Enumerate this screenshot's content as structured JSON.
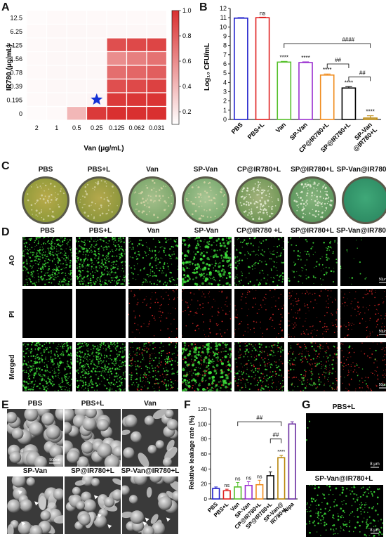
{
  "panels": {
    "A": "A",
    "B": "B",
    "C": "C",
    "D": "D",
    "E": "E",
    "F": "F",
    "G": "G"
  },
  "chart_data": [
    {
      "panel": "A",
      "type": "heatmap",
      "xlabel": "Van (μg/mL)",
      "ylabel": "IR780 (μg/mL)",
      "x_categories": [
        "2",
        "1",
        "0.5",
        "0.25",
        "0.125",
        "0.062",
        "0.031"
      ],
      "y_categories": [
        "12.5",
        "6.25",
        "3.125",
        "1.56",
        "0.78",
        "0.39",
        "0.195",
        "0"
      ],
      "values": [
        [
          0.02,
          0.03,
          0.03,
          0.03,
          0.03,
          0.03,
          0.03
        ],
        [
          0.03,
          0.04,
          0.04,
          0.04,
          0.04,
          0.04,
          0.04
        ],
        [
          0.03,
          0.04,
          0.04,
          0.04,
          0.85,
          0.88,
          0.9
        ],
        [
          0.03,
          0.04,
          0.04,
          0.04,
          0.55,
          0.62,
          0.68
        ],
        [
          0.03,
          0.04,
          0.04,
          0.04,
          0.7,
          0.74,
          0.78
        ],
        [
          0.03,
          0.04,
          0.04,
          0.04,
          0.85,
          0.88,
          0.92
        ],
        [
          0.03,
          0.04,
          0.04,
          0.05,
          0.95,
          0.97,
          0.98
        ],
        [
          0.02,
          0.03,
          0.35,
          0.95,
          1.0,
          1.0,
          1.0
        ]
      ],
      "colorbar_ticks": [
        "1.0",
        "0.8",
        "0.6",
        "0.4",
        "0.2"
      ],
      "colorbar_range": [
        0.1,
        1.0
      ],
      "marker": {
        "shape": "star",
        "x": "0.25",
        "y": "0.195",
        "color": "#1432d6"
      }
    },
    {
      "panel": "B",
      "type": "bar",
      "ylabel": "Log₁₀ CFU/mL",
      "ylim": [
        0,
        12
      ],
      "yticks": [
        "0",
        "1",
        "2",
        "3",
        "4",
        "5",
        "6",
        "7",
        "8",
        "9",
        "10",
        "11",
        "12"
      ],
      "categories": [
        "PBS",
        "PBS+L",
        "Van",
        "SP-Van",
        "CP@IR780+L",
        "SP@IR780+L",
        "SP-Van\n@IR780+L"
      ],
      "values": [
        10.95,
        11.0,
        6.2,
        6.15,
        4.8,
        3.4,
        0.15
      ],
      "errors": [
        0.06,
        0.06,
        0.08,
        0.08,
        0.12,
        0.15,
        0.25
      ],
      "colors": [
        "#2222cc",
        "#e02020",
        "#55c02a",
        "#9b30d0",
        "#f08c1e",
        "#000000",
        "#b8860b"
      ],
      "significance": [
        "",
        "ns",
        "****",
        "****",
        "****",
        "****",
        "****"
      ],
      "brackets": [
        "####",
        "##",
        "##"
      ]
    },
    {
      "panel": "F",
      "type": "bar",
      "ylabel": "Relative leakage rate (%)",
      "ylim": [
        0,
        120
      ],
      "yticks": [
        "0",
        "20",
        "40",
        "60",
        "80",
        "100",
        "120"
      ],
      "categories": [
        "PBS",
        "PBS+L",
        "Van",
        "SP-Van",
        "CP@IR780+L",
        "SP@IR780+L",
        "SP-Van@\nIR780+L",
        "Ripa"
      ],
      "values": [
        14,
        11,
        16,
        18,
        19,
        31,
        55,
        100
      ],
      "errors": [
        2,
        2,
        6,
        5,
        6,
        5,
        3,
        3
      ],
      "colors": [
        "#2222cc",
        "#e02020",
        "#55c02a",
        "#9b30d0",
        "#f08c1e",
        "#000000",
        "#b8860b",
        "#6a2ea0"
      ],
      "significance": [
        "",
        "ns",
        "ns",
        "ns",
        "ns",
        "*",
        "****",
        ""
      ],
      "brackets": [
        "##",
        "##"
      ]
    }
  ],
  "panelC": {
    "labels": [
      "PBS",
      "PBS+L",
      "Van",
      "SP-Van",
      "CP@IR780+L",
      "SP@IR780+L",
      "SP-Van@IR780+L"
    ]
  },
  "panelD": {
    "columns": [
      "PBS",
      "PBS+L",
      "Van",
      "SP-Van",
      "CP@IR780 +L",
      "SP@IR780+L",
      "SP-Van@IR780+L"
    ],
    "rows": [
      "AO",
      "PI",
      "Merged"
    ],
    "scalebar": "50μm"
  },
  "panelE": {
    "labels": [
      "PBS",
      "PBS+L",
      "Van",
      "SP-Van",
      "SP@IR780+L",
      "SP-Van@IR780+L"
    ],
    "scalebar": "500nm"
  },
  "panelG": {
    "labels": [
      "PBS+L",
      "SP-Van@IR780+L"
    ],
    "scalebar": "8 μm"
  }
}
